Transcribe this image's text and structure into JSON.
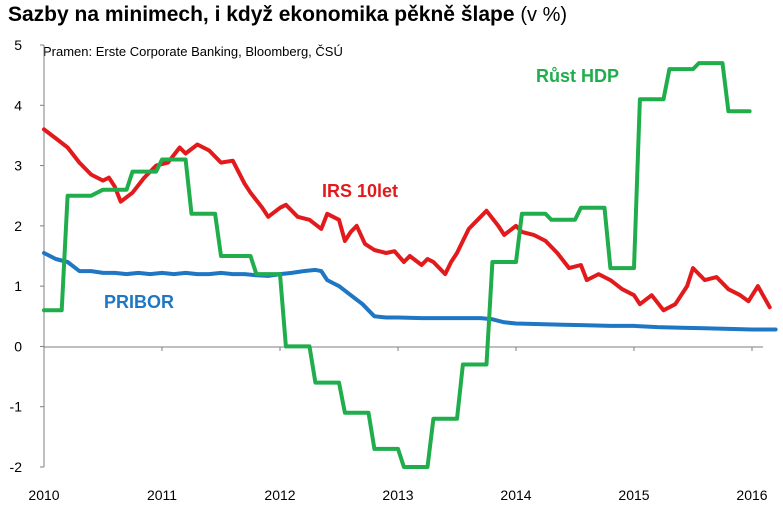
{
  "title": "Sazby na minimech, i když ekonomika pěkně šlape",
  "title_unit": "(v %)",
  "source": "Pramen: Erste Corporate Banking, Bloomberg, ČSÚ",
  "chart_data": {
    "type": "line",
    "ylim": [
      -2,
      5
    ],
    "xlim": [
      2010,
      2016
    ],
    "y_ticks": [
      "5",
      "4",
      "3",
      "2",
      "1",
      "0",
      "-1",
      "-2"
    ],
    "x_ticks": [
      "2010",
      "2011",
      "2012",
      "2013",
      "2014",
      "2015",
      "2016"
    ],
    "grid": false,
    "series": [
      {
        "name": "IRS 10let",
        "color": "#e31a1c",
        "points": [
          [
            2010.0,
            3.6
          ],
          [
            2010.1,
            3.45
          ],
          [
            2010.2,
            3.3
          ],
          [
            2010.3,
            3.05
          ],
          [
            2010.4,
            2.85
          ],
          [
            2010.5,
            2.75
          ],
          [
            2010.55,
            2.8
          ],
          [
            2010.6,
            2.65
          ],
          [
            2010.65,
            2.4
          ],
          [
            2010.75,
            2.55
          ],
          [
            2010.85,
            2.8
          ],
          [
            2010.95,
            3.0
          ],
          [
            2011.05,
            3.05
          ],
          [
            2011.15,
            3.3
          ],
          [
            2011.2,
            3.2
          ],
          [
            2011.3,
            3.35
          ],
          [
            2011.4,
            3.25
          ],
          [
            2011.5,
            3.05
          ],
          [
            2011.6,
            3.08
          ],
          [
            2011.7,
            2.7
          ],
          [
            2011.75,
            2.55
          ],
          [
            2011.85,
            2.3
          ],
          [
            2011.9,
            2.15
          ],
          [
            2012.0,
            2.3
          ],
          [
            2012.05,
            2.35
          ],
          [
            2012.15,
            2.15
          ],
          [
            2012.25,
            2.1
          ],
          [
            2012.35,
            1.95
          ],
          [
            2012.4,
            2.2
          ],
          [
            2012.45,
            2.15
          ],
          [
            2012.5,
            2.1
          ],
          [
            2012.55,
            1.75
          ],
          [
            2012.6,
            1.9
          ],
          [
            2012.65,
            2.0
          ],
          [
            2012.72,
            1.7
          ],
          [
            2012.8,
            1.6
          ],
          [
            2012.9,
            1.55
          ],
          [
            2012.97,
            1.58
          ],
          [
            2013.05,
            1.4
          ],
          [
            2013.1,
            1.5
          ],
          [
            2013.2,
            1.35
          ],
          [
            2013.25,
            1.45
          ],
          [
            2013.3,
            1.4
          ],
          [
            2013.4,
            1.2
          ],
          [
            2013.45,
            1.4
          ],
          [
            2013.5,
            1.55
          ],
          [
            2013.55,
            1.75
          ],
          [
            2013.6,
            1.95
          ],
          [
            2013.65,
            2.05
          ],
          [
            2013.75,
            2.25
          ],
          [
            2013.85,
            2.0
          ],
          [
            2013.9,
            1.85
          ],
          [
            2014.0,
            2.0
          ],
          [
            2014.05,
            1.9
          ],
          [
            2014.15,
            1.85
          ],
          [
            2014.25,
            1.75
          ],
          [
            2014.35,
            1.55
          ],
          [
            2014.45,
            1.3
          ],
          [
            2014.55,
            1.35
          ],
          [
            2014.6,
            1.1
          ],
          [
            2014.7,
            1.2
          ],
          [
            2014.8,
            1.1
          ],
          [
            2014.9,
            0.95
          ],
          [
            2015.0,
            0.85
          ],
          [
            2015.05,
            0.7
          ],
          [
            2015.15,
            0.85
          ],
          [
            2015.25,
            0.6
          ],
          [
            2015.35,
            0.7
          ],
          [
            2015.45,
            1.0
          ],
          [
            2015.5,
            1.3
          ],
          [
            2015.6,
            1.1
          ],
          [
            2015.7,
            1.15
          ],
          [
            2015.8,
            0.95
          ],
          [
            2015.9,
            0.85
          ],
          [
            2015.97,
            0.75
          ],
          [
            2016.05,
            1.0
          ],
          [
            2016.15,
            0.65
          ]
        ]
      },
      {
        "name": "PRIBOR",
        "color": "#1f77c4",
        "points": [
          [
            2010.0,
            1.55
          ],
          [
            2010.1,
            1.45
          ],
          [
            2010.2,
            1.4
          ],
          [
            2010.3,
            1.25
          ],
          [
            2010.4,
            1.25
          ],
          [
            2010.5,
            1.22
          ],
          [
            2010.6,
            1.22
          ],
          [
            2010.7,
            1.2
          ],
          [
            2010.8,
            1.22
          ],
          [
            2010.9,
            1.2
          ],
          [
            2011.0,
            1.22
          ],
          [
            2011.1,
            1.2
          ],
          [
            2011.2,
            1.22
          ],
          [
            2011.3,
            1.2
          ],
          [
            2011.4,
            1.2
          ],
          [
            2011.5,
            1.22
          ],
          [
            2011.6,
            1.2
          ],
          [
            2011.7,
            1.2
          ],
          [
            2011.8,
            1.18
          ],
          [
            2011.9,
            1.17
          ],
          [
            2012.0,
            1.2
          ],
          [
            2012.1,
            1.22
          ],
          [
            2012.2,
            1.25
          ],
          [
            2012.3,
            1.27
          ],
          [
            2012.35,
            1.25
          ],
          [
            2012.4,
            1.1
          ],
          [
            2012.5,
            1.0
          ],
          [
            2012.6,
            0.85
          ],
          [
            2012.7,
            0.7
          ],
          [
            2012.75,
            0.6
          ],
          [
            2012.8,
            0.5
          ],
          [
            2012.9,
            0.48
          ],
          [
            2013.0,
            0.48
          ],
          [
            2013.2,
            0.47
          ],
          [
            2013.5,
            0.47
          ],
          [
            2013.7,
            0.47
          ],
          [
            2013.8,
            0.45
          ],
          [
            2013.9,
            0.4
          ],
          [
            2014.0,
            0.38
          ],
          [
            2014.2,
            0.37
          ],
          [
            2014.4,
            0.36
          ],
          [
            2014.6,
            0.35
          ],
          [
            2014.8,
            0.34
          ],
          [
            2015.0,
            0.34
          ],
          [
            2015.2,
            0.32
          ],
          [
            2015.4,
            0.31
          ],
          [
            2015.6,
            0.3
          ],
          [
            2015.8,
            0.29
          ],
          [
            2016.0,
            0.28
          ],
          [
            2016.2,
            0.28
          ]
        ]
      },
      {
        "name": "Růst HDP",
        "color": "#1fae4b",
        "points": [
          [
            2010.0,
            0.6
          ],
          [
            2010.15,
            0.6
          ],
          [
            2010.2,
            2.5
          ],
          [
            2010.4,
            2.5
          ],
          [
            2010.5,
            2.6
          ],
          [
            2010.7,
            2.6
          ],
          [
            2010.75,
            2.9
          ],
          [
            2010.95,
            2.9
          ],
          [
            2011.0,
            3.1
          ],
          [
            2011.2,
            3.1
          ],
          [
            2011.25,
            2.2
          ],
          [
            2011.45,
            2.2
          ],
          [
            2011.5,
            1.5
          ],
          [
            2011.75,
            1.5
          ],
          [
            2011.8,
            1.2
          ],
          [
            2012.0,
            1.2
          ],
          [
            2012.05,
            0.0
          ],
          [
            2012.25,
            0.0
          ],
          [
            2012.3,
            -0.6
          ],
          [
            2012.5,
            -0.6
          ],
          [
            2012.55,
            -1.1
          ],
          [
            2012.75,
            -1.1
          ],
          [
            2012.8,
            -1.7
          ],
          [
            2013.0,
            -1.7
          ],
          [
            2013.05,
            -2.0
          ],
          [
            2013.25,
            -2.0
          ],
          [
            2013.3,
            -1.2
          ],
          [
            2013.5,
            -1.2
          ],
          [
            2013.55,
            -0.3
          ],
          [
            2013.75,
            -0.3
          ],
          [
            2013.8,
            1.4
          ],
          [
            2014.0,
            1.4
          ],
          [
            2014.05,
            2.2
          ],
          [
            2014.25,
            2.2
          ],
          [
            2014.3,
            2.1
          ],
          [
            2014.5,
            2.1
          ],
          [
            2014.55,
            2.3
          ],
          [
            2014.75,
            2.3
          ],
          [
            2014.8,
            1.3
          ],
          [
            2015.0,
            1.3
          ],
          [
            2015.05,
            4.1
          ],
          [
            2015.25,
            4.1
          ],
          [
            2015.3,
            4.6
          ],
          [
            2015.5,
            4.6
          ],
          [
            2015.55,
            4.7
          ],
          [
            2015.75,
            4.7
          ],
          [
            2015.8,
            3.9
          ],
          [
            2015.98,
            3.9
          ]
        ]
      }
    ],
    "annotations": [
      {
        "text": "IRS 10let",
        "series": 0
      },
      {
        "text": "PRIBOR",
        "series": 1
      },
      {
        "text": "Růst HDP",
        "series": 2
      }
    ]
  }
}
